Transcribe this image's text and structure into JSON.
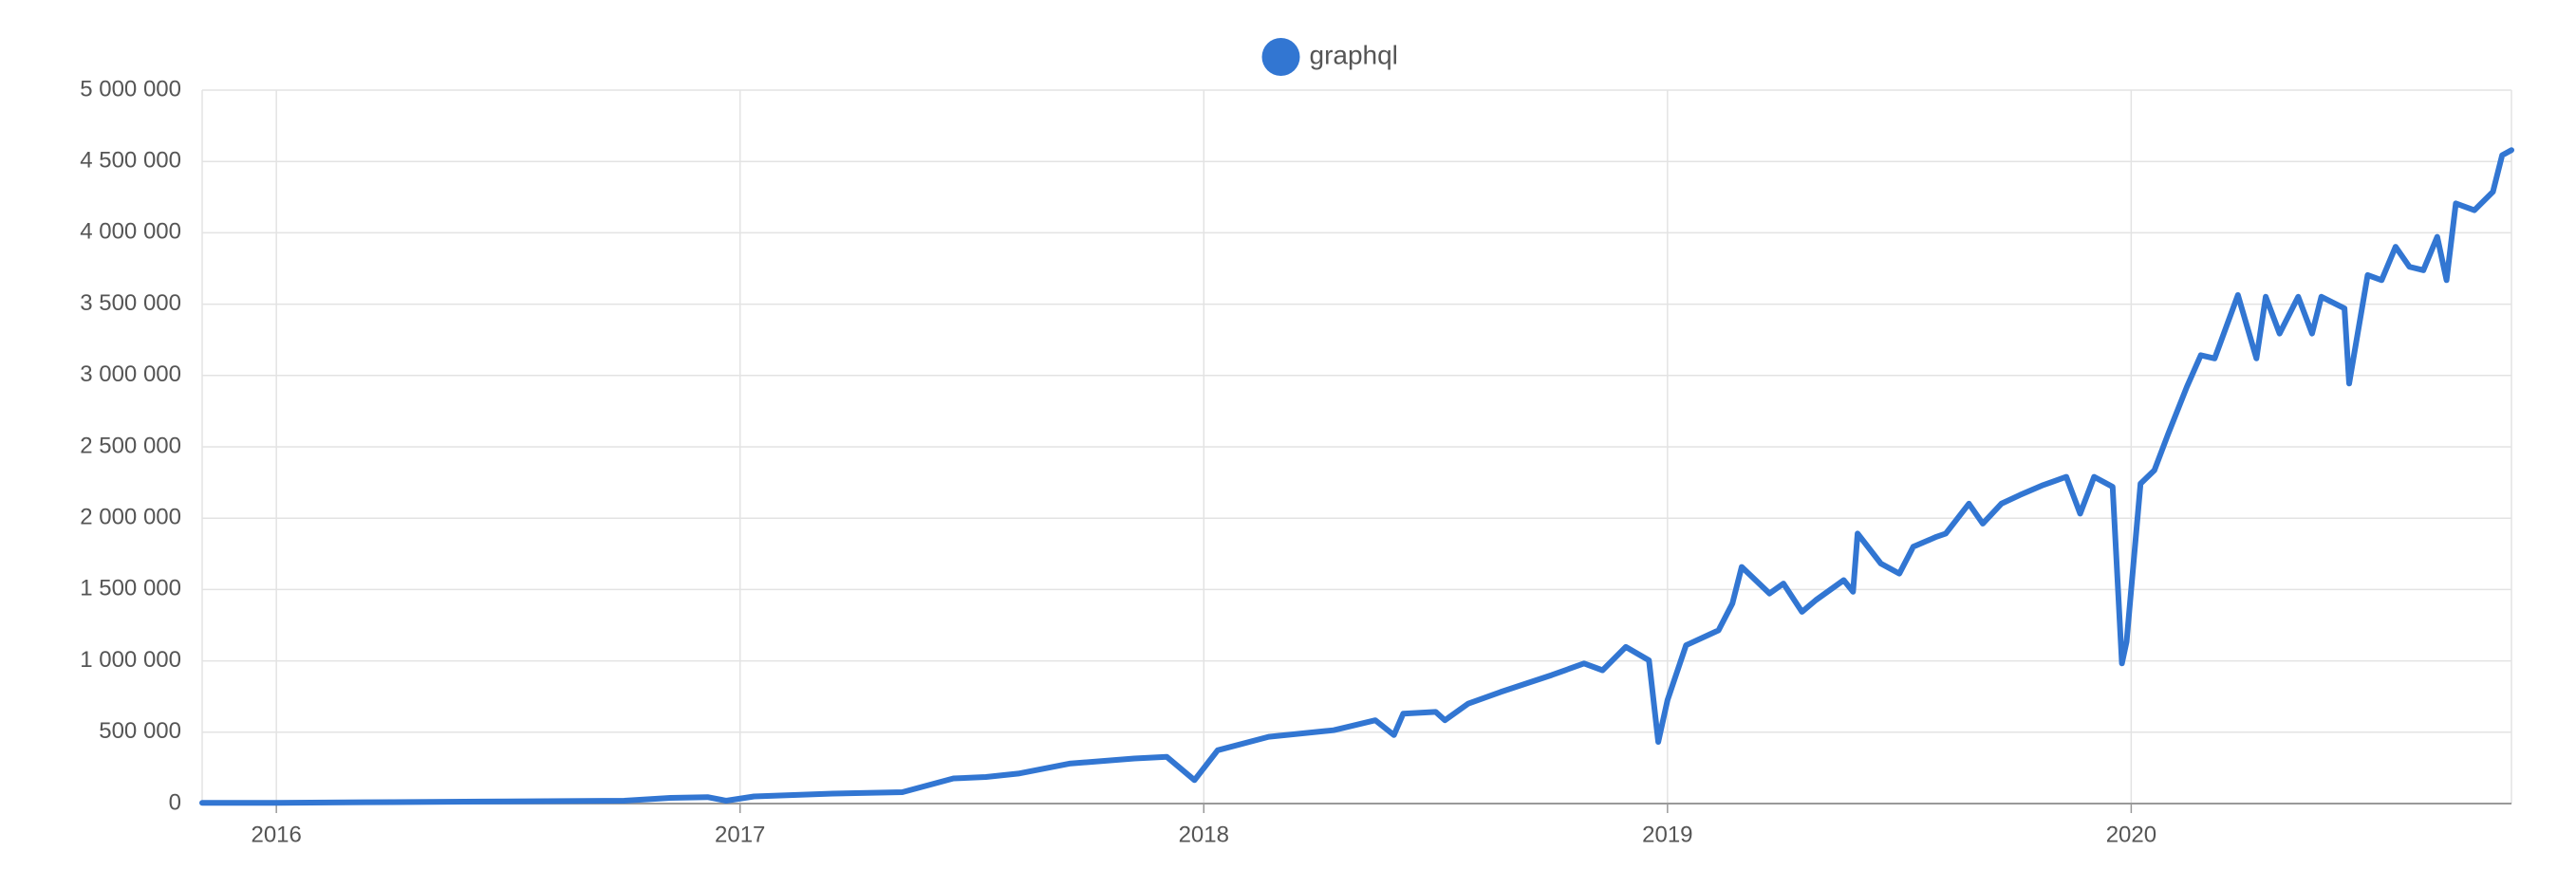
{
  "chart_data": {
    "type": "line",
    "x": [
      2015.84,
      2016.0,
      2016.25,
      2016.5,
      2016.75,
      2016.85,
      2016.93,
      2016.97,
      2017.03,
      2017.2,
      2017.35,
      2017.46,
      2017.53,
      2017.6,
      2017.71,
      2017.85,
      2017.92,
      2017.98,
      2018.03,
      2018.14,
      2018.28,
      2018.37,
      2018.41,
      2018.43,
      2018.5,
      2018.52,
      2018.57,
      2018.64,
      2018.75,
      2018.82,
      2018.86,
      2018.91,
      2018.96,
      2018.98,
      2019.0,
      2019.04,
      2019.11,
      2019.14,
      2019.16,
      2019.22,
      2019.25,
      2019.29,
      2019.32,
      2019.38,
      2019.4,
      2019.41,
      2019.46,
      2019.5,
      2019.53,
      2019.58,
      2019.6,
      2019.65,
      2019.68,
      2019.72,
      2019.76,
      2019.81,
      2019.86,
      2019.89,
      2019.92,
      2019.96,
      2019.98,
      2019.99,
      2020.02,
      2020.05,
      2020.08,
      2020.12,
      2020.15,
      2020.18,
      2020.23,
      2020.27,
      2020.29,
      2020.32,
      2020.36,
      2020.39,
      2020.41,
      2020.46,
      2020.47,
      2020.51,
      2020.54,
      2020.57,
      2020.6,
      2020.63,
      2020.66,
      2020.68,
      2020.7,
      2020.74,
      2020.78,
      2020.8,
      2020.82
    ],
    "series": [
      {
        "name": "graphql",
        "color": "#3276d2",
        "values": [
          5000,
          5000,
          10000,
          15000,
          20000,
          40000,
          45000,
          20000,
          50000,
          70000,
          80000,
          176000,
          186000,
          210000,
          280000,
          316000,
          328000,
          164000,
          374000,
          468000,
          514000,
          584000,
          480000,
          630000,
          642000,
          584000,
          700000,
          782000,
          900000,
          982000,
          934000,
          1098000,
          1004000,
          432000,
          724000,
          1110000,
          1214000,
          1402000,
          1658000,
          1472000,
          1542000,
          1344000,
          1426000,
          1566000,
          1484000,
          1892000,
          1682000,
          1612000,
          1800000,
          1870000,
          1892000,
          2102000,
          1962000,
          2102000,
          2162000,
          2232000,
          2290000,
          2032000,
          2290000,
          2220000,
          982000,
          1134000,
          2242000,
          2336000,
          2594000,
          2920000,
          3142000,
          3120000,
          3564000,
          3120000,
          3552000,
          3294000,
          3552000,
          3294000,
          3552000,
          3470000,
          2944000,
          3704000,
          3668000,
          3902000,
          3762000,
          3738000,
          3972000,
          3668000,
          4206000,
          4158000,
          4288000,
          4544000,
          4580000
        ]
      }
    ],
    "xlim": [
      2015.84,
      2020.82
    ],
    "xticks": [
      2016,
      2017,
      2018,
      2019,
      2020
    ],
    "ylim": [
      0,
      5000000
    ],
    "yticks": [
      {
        "value": 0,
        "label": "0"
      },
      {
        "value": 500000,
        "label": "500 000"
      },
      {
        "value": 1000000,
        "label": "1 000 000"
      },
      {
        "value": 1500000,
        "label": "1 500 000"
      },
      {
        "value": 2000000,
        "label": "2 000 000"
      },
      {
        "value": 2500000,
        "label": "2 500 000"
      },
      {
        "value": 3000000,
        "label": "3 000 000"
      },
      {
        "value": 3500000,
        "label": "3 500 000"
      },
      {
        "value": 4000000,
        "label": "4 000 000"
      },
      {
        "value": 4500000,
        "label": "4 500 000"
      },
      {
        "value": 5000000,
        "label": "5 000 000"
      }
    ],
    "grid": true,
    "legend": "top"
  }
}
